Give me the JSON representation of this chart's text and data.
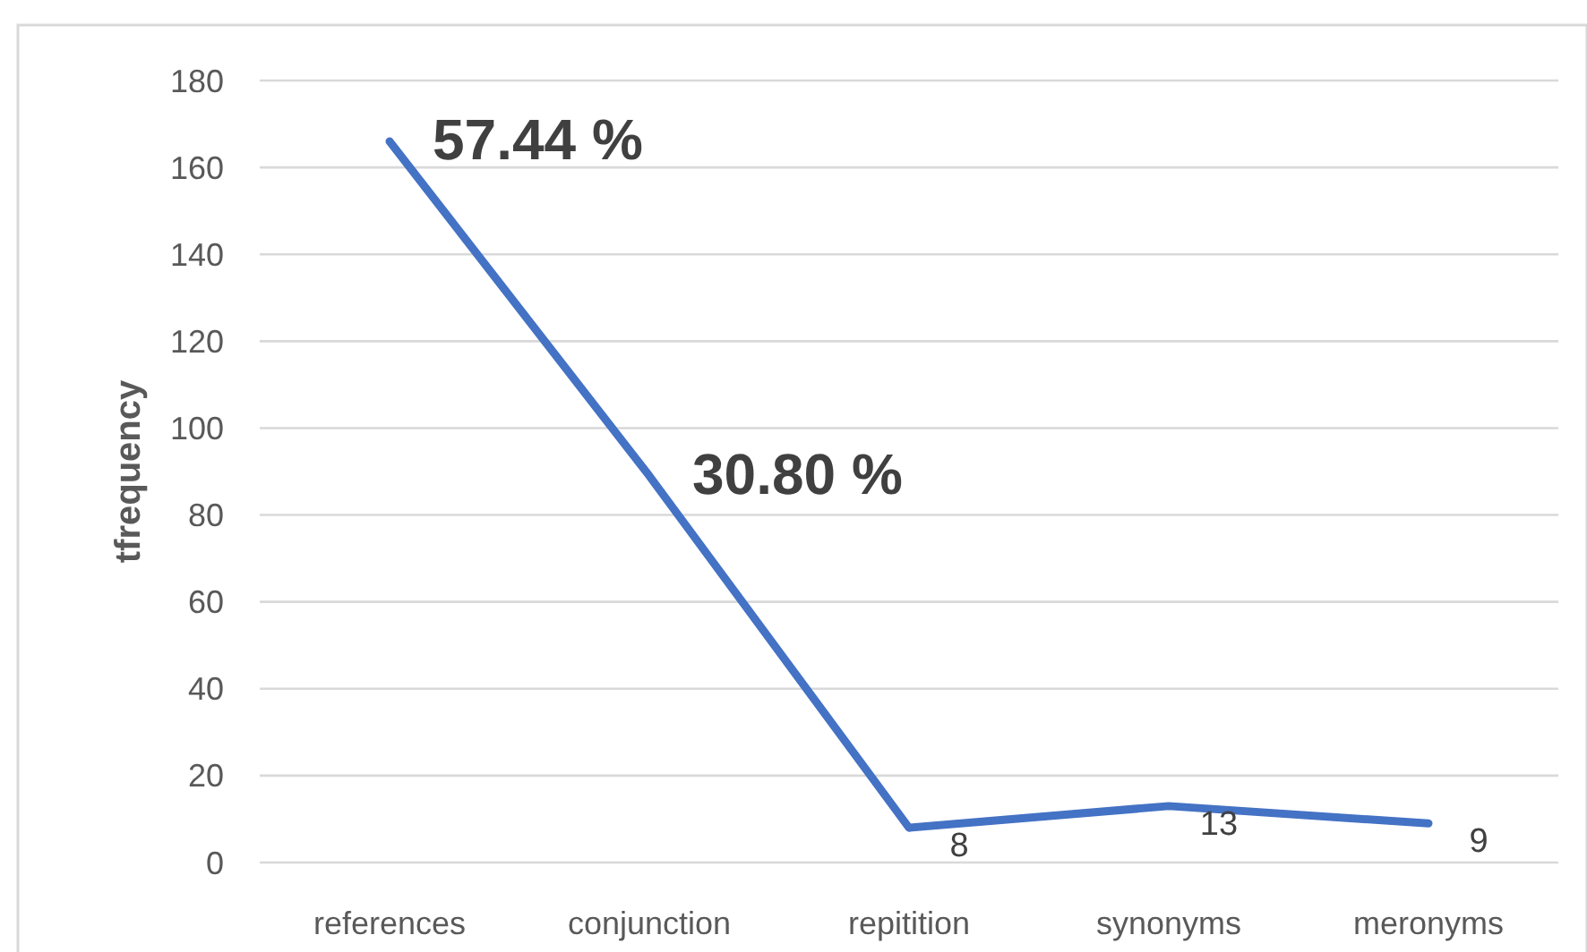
{
  "chart_data": {
    "type": "line",
    "ylabel": "tfrequency",
    "categories": [
      "references",
      "conjunction",
      "repitition",
      "synonyms",
      "meronyms"
    ],
    "series": [
      {
        "color": "#4472c4",
        "values": [
          166,
          89,
          8,
          13,
          9
        ],
        "value_labels": [
          null,
          null,
          "8",
          "13",
          "9"
        ]
      }
    ],
    "annotations": [
      {
        "text": "57.44 %",
        "x": "references",
        "y": 166
      },
      {
        "text": "30.80 %",
        "x": "conjunction",
        "y": 89
      }
    ],
    "ylim": [
      0,
      180
    ],
    "yticks": [
      0,
      20,
      40,
      60,
      80,
      100,
      120,
      140,
      160,
      180
    ],
    "grid": "y",
    "marker": "none",
    "line_style": "solid"
  }
}
